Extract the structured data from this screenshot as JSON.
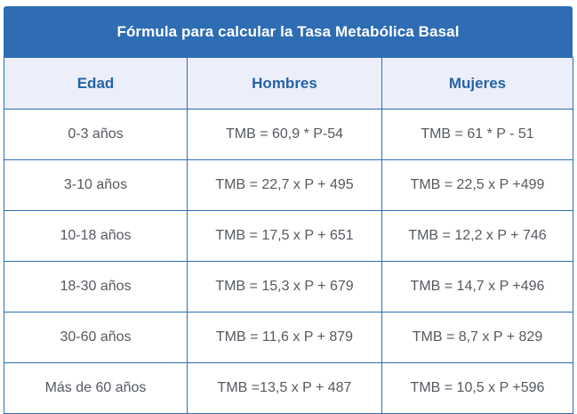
{
  "title": "Fórmula para calcular la Tasa Metabólica Basal",
  "colors": {
    "header_bg": "#2e6db4",
    "subheader_bg": "#eceffa",
    "subheader_text": "#2563a8",
    "body_text": "#555a60",
    "border": "#2e6db4"
  },
  "columns": [
    "Edad",
    "Hombres",
    "Mujeres"
  ],
  "rows": [
    [
      "0-3 años",
      "TMB = 60,9 * P-54",
      "TMB = 61 * P - 51"
    ],
    [
      "3-10 años",
      "TMB = 22,7 x P + 495",
      "TMB = 22,5 x P +499"
    ],
    [
      "10-18 años",
      "TMB = 17,5 x P + 651",
      "TMB = 12,2 x P + 746"
    ],
    [
      "18-30 años",
      "TMB = 15,3 x P + 679",
      "TMB = 14,7 x P +496"
    ],
    [
      "30-60 años",
      "TMB = 11,6 x P + 879",
      "TMB = 8,7 x P + 829"
    ],
    [
      "Más de 60 años",
      "TMB =13,5 x P + 487",
      "TMB = 10,5 x P +596"
    ]
  ]
}
